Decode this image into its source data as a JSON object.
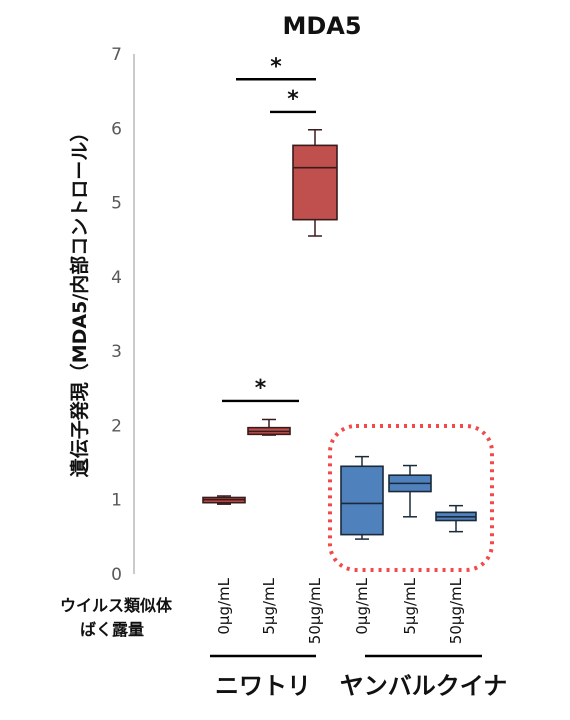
{
  "chart_data": {
    "type": "box",
    "title": "MDA5",
    "ylabel": "遺伝子発現（MDA5/内部コントロール）",
    "ylim": [
      0,
      7
    ],
    "yticks": [
      0,
      1,
      2,
      3,
      4,
      5,
      6,
      7
    ],
    "xlabel_lines": [
      "ウイルス類似体",
      "ばく露量"
    ],
    "groups": [
      {
        "name": "ニワトリ",
        "color": "#c0504d",
        "stroke": "#3a1a1a",
        "boxes": [
          {
            "category": "0μg/mL",
            "min": 0.94,
            "q1": 0.96,
            "median": 1.0,
            "q3": 1.03,
            "max": 1.05
          },
          {
            "category": "5μg/mL",
            "min": 1.87,
            "q1": 1.88,
            "median": 1.92,
            "q3": 1.97,
            "max": 2.08
          },
          {
            "category": "50μg/mL",
            "min": 4.55,
            "q1": 4.77,
            "median": 5.47,
            "q3": 5.77,
            "max": 5.98
          }
        ]
      },
      {
        "name": "ヤンバルクイナ",
        "color": "#4f81bd",
        "stroke": "#1a2a3a",
        "boxes": [
          {
            "category": "0μg/mL",
            "min": 0.47,
            "q1": 0.53,
            "median": 0.95,
            "q3": 1.45,
            "max": 1.58
          },
          {
            "category": "5μg/mL",
            "min": 0.77,
            "q1": 1.11,
            "median": 1.22,
            "q3": 1.33,
            "max": 1.46
          },
          {
            "category": "50μg/mL",
            "min": 0.57,
            "q1": 0.72,
            "median": 0.77,
            "q3": 0.83,
            "max": 0.92
          }
        ]
      }
    ],
    "significance": [
      {
        "label": "*",
        "y": 6.66
      },
      {
        "label": "*",
        "y": 6.22
      },
      {
        "label": "*",
        "y": 2.33
      }
    ]
  }
}
